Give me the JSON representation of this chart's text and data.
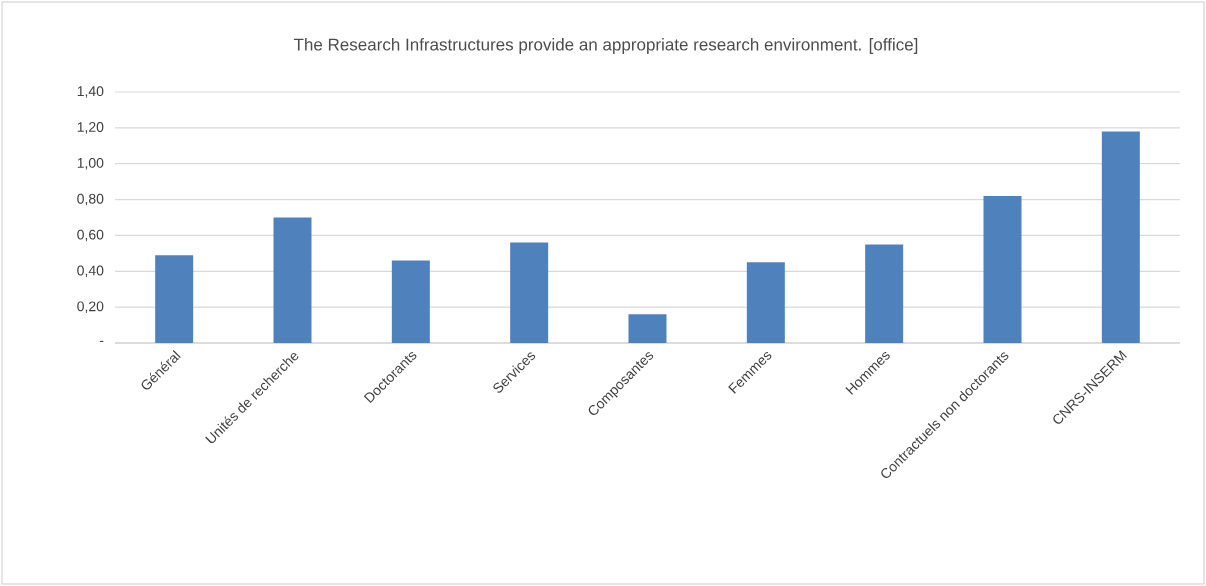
{
  "chart_data": {
    "type": "bar",
    "title": "The Research Infrastructures provide an appropriate research environment.   [office]",
    "categories": [
      "Général",
      "Unités de recherche",
      "Doctorants",
      "Services",
      "Composantes",
      "Femmes",
      "Hommes",
      "Contractuels non doctorants",
      "CNRS-INSERM"
    ],
    "values": [
      0.49,
      0.7,
      0.46,
      0.56,
      0.16,
      0.45,
      0.55,
      0.82,
      1.18
    ],
    "color": "#4f81bd",
    "ylim": [
      0,
      1.4
    ],
    "yticks": [
      {
        "value": 0,
        "label": "-"
      },
      {
        "value": 0.2,
        "label": "0,20"
      },
      {
        "value": 0.4,
        "label": "0,40"
      },
      {
        "value": 0.6,
        "label": "0,60"
      },
      {
        "value": 0.8,
        "label": "0,80"
      },
      {
        "value": 1.0,
        "label": "1,00"
      },
      {
        "value": 1.2,
        "label": "1,20"
      },
      {
        "value": 1.4,
        "label": "1,40"
      }
    ],
    "grid": "y"
  }
}
